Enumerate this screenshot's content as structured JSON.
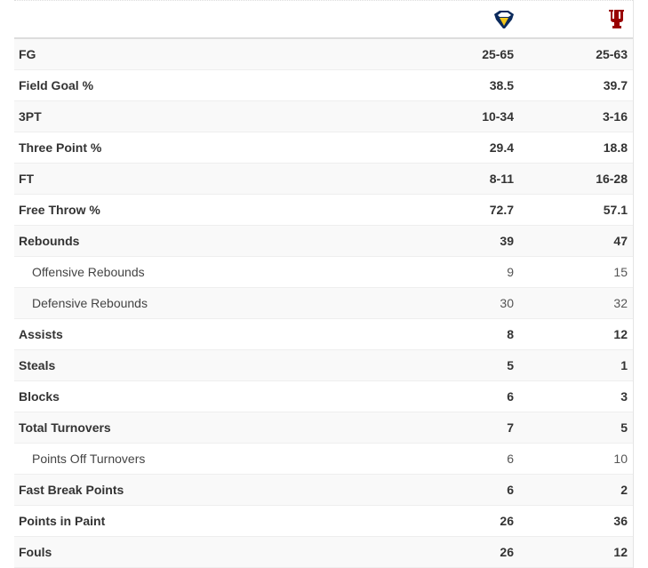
{
  "teams": [
    {
      "icon": "eagle-logo-icon",
      "color": "#f2c519"
    },
    {
      "icon": "iu-trident-logo-icon",
      "color": "#990000"
    }
  ],
  "rows": [
    {
      "label": "FG",
      "a": "25-65",
      "b": "25-63",
      "sub": false
    },
    {
      "label": "Field Goal %",
      "a": "38.5",
      "b": "39.7",
      "sub": false
    },
    {
      "label": "3PT",
      "a": "10-34",
      "b": "3-16",
      "sub": false
    },
    {
      "label": "Three Point %",
      "a": "29.4",
      "b": "18.8",
      "sub": false
    },
    {
      "label": "FT",
      "a": "8-11",
      "b": "16-28",
      "sub": false
    },
    {
      "label": "Free Throw %",
      "a": "72.7",
      "b": "57.1",
      "sub": false
    },
    {
      "label": "Rebounds",
      "a": "39",
      "b": "47",
      "sub": false
    },
    {
      "label": "Offensive Rebounds",
      "a": "9",
      "b": "15",
      "sub": true
    },
    {
      "label": "Defensive Rebounds",
      "a": "30",
      "b": "32",
      "sub": true
    },
    {
      "label": "Assists",
      "a": "8",
      "b": "12",
      "sub": false
    },
    {
      "label": "Steals",
      "a": "5",
      "b": "1",
      "sub": false
    },
    {
      "label": "Blocks",
      "a": "6",
      "b": "3",
      "sub": false
    },
    {
      "label": "Total Turnovers",
      "a": "7",
      "b": "5",
      "sub": false
    },
    {
      "label": "Points Off Turnovers",
      "a": "6",
      "b": "10",
      "sub": true
    },
    {
      "label": "Fast Break Points",
      "a": "6",
      "b": "2",
      "sub": false
    },
    {
      "label": "Points in Paint",
      "a": "26",
      "b": "36",
      "sub": false
    },
    {
      "label": "Fouls",
      "a": "26",
      "b": "12",
      "sub": false
    }
  ]
}
